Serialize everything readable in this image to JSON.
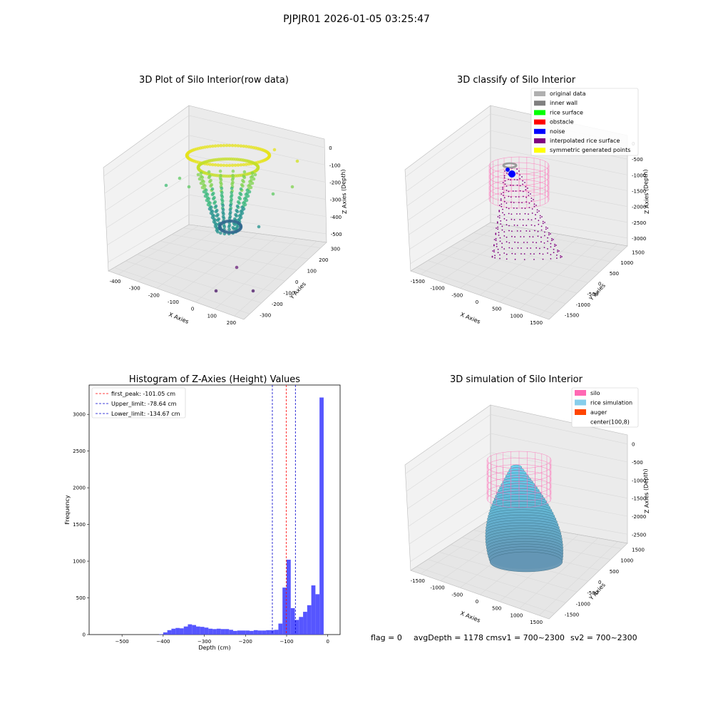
{
  "figure": {
    "title": "PJPJR01 2026-01-05 03:25:47"
  },
  "panels": {
    "raw": {
      "title": "3D Plot of Silo Interior(row data)",
      "xlabel": "X Axies",
      "ylabel": "Y Axies",
      "zlabel": "Z Axies (Depth)",
      "xticks": [
        "-400",
        "-300",
        "-200",
        "-100",
        "0",
        "100",
        "200"
      ],
      "yticks": [
        "300",
        "200",
        "100",
        "0",
        "-100",
        "-200",
        "-300"
      ],
      "zticks": [
        "0",
        "-100",
        "-200",
        "-300",
        "-400",
        "-500"
      ]
    },
    "classify": {
      "title": "3D classify of Silo Interior",
      "xlabel": "X Axies",
      "ylabel": "Y Axies",
      "zlabel": "Z Axies (Depth)",
      "xticks": [
        "-1500",
        "-1000",
        "-500",
        "0",
        "500",
        "1000",
        "1500"
      ],
      "yticks": [
        "1500",
        "1000",
        "500",
        "0",
        "-500",
        "-1000",
        "-1500"
      ],
      "zticks": [
        "0",
        "-500",
        "-1000",
        "-1500",
        "-2000",
        "-2500",
        "-3000"
      ],
      "legend": [
        {
          "label": "original data",
          "color": "#b0b0b0"
        },
        {
          "label": "inner wall",
          "color": "#808080"
        },
        {
          "label": "rice surface",
          "color": "#00ff00"
        },
        {
          "label": "obstacle",
          "color": "#ff0000"
        },
        {
          "label": "noise",
          "color": "#0000ff"
        },
        {
          "label": "interpolated rice surface",
          "color": "#800080"
        },
        {
          "label": "symmetric generated points",
          "color": "#ffff00"
        }
      ]
    },
    "simulation": {
      "title": "3D simulation of Silo Interior",
      "xlabel": "X Axies",
      "ylabel": "Y Axies",
      "zlabel": "Z Axies (Depth)",
      "xticks": [
        "-1500",
        "-1000",
        "-500",
        "0",
        "500",
        "1000",
        "1500"
      ],
      "yticks": [
        "1500",
        "1000",
        "500",
        "0",
        "-500",
        "-1000",
        "-1500"
      ],
      "zticks": [
        "0",
        "-500",
        "-1000",
        "-1500",
        "-2000",
        "-2500"
      ],
      "legend": [
        {
          "label": "silo",
          "color": "#ff69b4"
        },
        {
          "label": "rice simulation",
          "color": "#87ceeb"
        },
        {
          "label": "auger",
          "color": "#ff4500"
        },
        {
          "label": "center(100,8)",
          "color": "#ffffff"
        }
      ]
    }
  },
  "status": {
    "flag": "flag = 0",
    "avg_depth": "avgDepth = 1178 cmsv1 = 700~2300",
    "sv2": "sv2 = 700~2300"
  },
  "colors": {
    "hist_bar": "#4d4dff",
    "first_peak_line": "#ff0000",
    "limit_line": "#0000cc",
    "pane": "#f2f2f2",
    "grid": "#d9d9d9"
  },
  "chart_data": [
    {
      "type": "scatter",
      "title": "3D Plot of Silo Interior(row data)",
      "xlabel": "X Axies",
      "ylabel": "Y Axies",
      "zlabel": "Z Axies (Depth)",
      "xlim": [
        -450,
        220
      ],
      "ylim": [
        -340,
        310
      ],
      "zlim": [
        -560,
        20
      ],
      "colormap": "viridis (by depth)"
    },
    {
      "type": "scatter",
      "title": "3D classify of Silo Interior",
      "xlabel": "X Axies",
      "ylabel": "Y Axies",
      "zlabel": "Z Axies (Depth)",
      "xlim": [
        -1600,
        1600
      ],
      "ylim": [
        -1600,
        1600
      ],
      "zlim": [
        -3200,
        0
      ],
      "series": [
        {
          "name": "original data"
        },
        {
          "name": "inner wall"
        },
        {
          "name": "rice surface"
        },
        {
          "name": "obstacle"
        },
        {
          "name": "noise"
        },
        {
          "name": "interpolated rice surface"
        },
        {
          "name": "symmetric generated points"
        }
      ]
    },
    {
      "type": "bar",
      "title": "Histogram of Z-Axies (Height) Values",
      "xlabel": "Depth (cm)",
      "ylabel": "Frequency",
      "xlim": [
        -580,
        30
      ],
      "ylim": [
        0,
        3400
      ],
      "xticks": [
        -500,
        -400,
        -300,
        -200,
        -100,
        0
      ],
      "yticks": [
        0,
        500,
        1000,
        1500,
        2000,
        2500,
        3000
      ],
      "bin_width": 10,
      "bins_start": [
        -410,
        -400,
        -390,
        -380,
        -370,
        -360,
        -350,
        -340,
        -330,
        -320,
        -310,
        -300,
        -290,
        -280,
        -270,
        -260,
        -250,
        -240,
        -230,
        -220,
        -210,
        -200,
        -190,
        -180,
        -170,
        -160,
        -150,
        -140,
        -130,
        -120,
        -110,
        -100,
        -90,
        -80,
        -70,
        -60,
        -50,
        -40,
        -30,
        -20,
        -10
      ],
      "values": [
        5,
        30,
        60,
        80,
        90,
        85,
        110,
        140,
        130,
        110,
        105,
        95,
        80,
        75,
        80,
        75,
        75,
        65,
        50,
        55,
        55,
        55,
        50,
        60,
        55,
        55,
        60,
        60,
        65,
        150,
        640,
        1020,
        360,
        200,
        240,
        310,
        400,
        670,
        550,
        3230,
        0
      ],
      "lines": [
        {
          "name": "first_peak: -101.05 cm",
          "x": -101.05,
          "color": "#ff0000"
        },
        {
          "name": "Upper_limit: -78.64 cm",
          "x": -78.64,
          "color": "#0000cc"
        },
        {
          "name": "Lower_limit: -134.67 cm",
          "x": -134.67,
          "color": "#0000cc"
        }
      ]
    },
    {
      "type": "area",
      "title": "3D simulation of Silo Interior",
      "xlabel": "X Axies",
      "ylabel": "Y Axies",
      "zlabel": "Z Axies (Depth)",
      "xlim": [
        -1600,
        1600
      ],
      "ylim": [
        -1600,
        1600
      ],
      "zlim": [
        -2800,
        200
      ],
      "series": [
        {
          "name": "silo"
        },
        {
          "name": "rice simulation"
        },
        {
          "name": "auger"
        },
        {
          "name": "center(100,8)"
        }
      ]
    }
  ]
}
